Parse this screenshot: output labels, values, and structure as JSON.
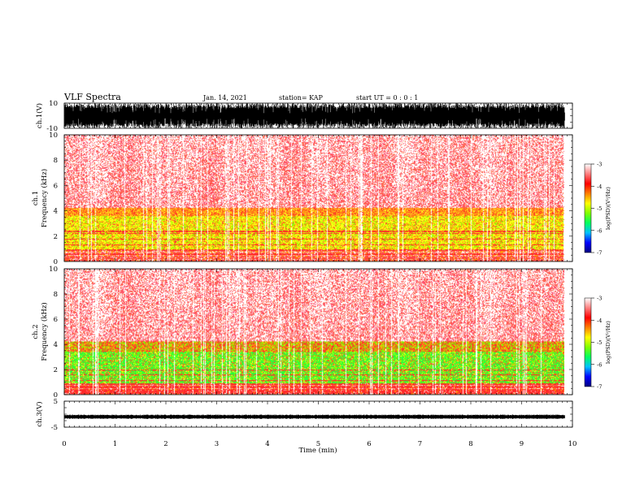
{
  "header": {
    "title": "VLF Spectra",
    "date": "Jan. 14, 2021",
    "station": "station= KAP",
    "start": "start  UT =   0 : 0  : 1"
  },
  "chart_data": [
    {
      "type": "line",
      "name": "ch1-waveform",
      "ylabel": "ch.1(V)",
      "ylim": [
        -10,
        10
      ],
      "ytick_labels": [
        "10",
        "-10"
      ],
      "xlim": [
        0,
        10
      ],
      "data_extent_min": 9.85,
      "appearance": "dense saturated waveform spanning nearly the full -10 to 10 V range"
    },
    {
      "type": "heatmap",
      "name": "ch1-spectrogram",
      "ylabel_lines": [
        "ch.1",
        "Frequency  (kHz)"
      ],
      "ylim": [
        0,
        10
      ],
      "yticks": [
        0,
        2,
        4,
        6,
        8,
        10
      ],
      "xlim": [
        0,
        10
      ],
      "data_extent_min": 9.85,
      "colorbar": {
        "label": "log(PSD)(V²/Hz)",
        "range": [
          -7,
          -3
        ],
        "ticks": [
          "-3",
          "-4",
          "-5",
          "-6",
          "-7"
        ],
        "colors": [
          "#000080",
          "#0000ff",
          "#00c0ff",
          "#00ff60",
          "#80ff00",
          "#ffff00",
          "#ff8000",
          "#ff0000",
          "#ff8080",
          "#ffffff"
        ]
      },
      "appearance": "sparse red above 4 kHz, yellow-green band around 1-3.5 kHz, red/pink near 0-1 kHz, frequent white vertical gaps"
    },
    {
      "type": "heatmap",
      "name": "ch2-spectrogram",
      "ylabel_lines": [
        "ch.2",
        "Frequency  (kHz)"
      ],
      "ylim": [
        0,
        10
      ],
      "yticks": [
        0,
        2,
        4,
        6,
        8,
        10
      ],
      "xlim": [
        0,
        10
      ],
      "data_extent_min": 9.85,
      "colorbar": {
        "label": "log(PSD)(V²/Hz)",
        "range": [
          -7,
          -3
        ],
        "ticks": [
          "-3",
          "-4",
          "-5",
          "-6",
          "-7"
        ],
        "colors": [
          "#000080",
          "#0000ff",
          "#00c0ff",
          "#00ff60",
          "#80ff00",
          "#ffff00",
          "#ff8000",
          "#ff0000",
          "#ff8080",
          "#ffffff"
        ]
      },
      "appearance": "sparse red above 4 kHz, broad green band around 0.5-3.5 kHz, red lines near 0-1 kHz, frequent white vertical gaps"
    },
    {
      "type": "line",
      "name": "ch3-waveform",
      "ylabel": "ch.3(V)",
      "ylim": [
        -5,
        5
      ],
      "ytick_labels": [
        "5",
        "-5"
      ],
      "xlim": [
        0,
        10
      ],
      "data_extent_min": 9.85,
      "level": -1,
      "appearance": "narrow flat black band near -1 V"
    }
  ],
  "x_axis": {
    "label": "Time  (min)",
    "ticks": [
      "0",
      "1",
      "2",
      "3",
      "4",
      "5",
      "6",
      "7",
      "8",
      "9",
      "10"
    ]
  }
}
